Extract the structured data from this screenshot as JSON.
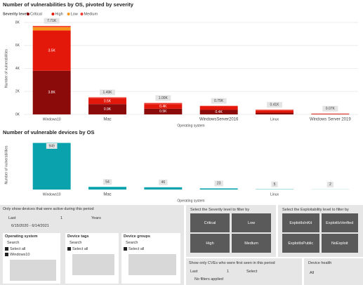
{
  "chart_data": [
    {
      "type": "stacked_bar",
      "title": "Number of vulnerabilities by OS, pivoted by severity",
      "legend_title": "Severity level",
      "y_label": "Number of vulnerabilities",
      "x_label": "Operating system",
      "categories": [
        "Windows10",
        "Mac",
        null,
        "WindowsServer2016",
        "Linux",
        "Windows Server 2019"
      ],
      "series": [
        {
          "name": "Critical",
          "color": "#8b0a0a",
          "values": [
            3800,
            900,
            500,
            400,
            150,
            20
          ],
          "value_labels": [
            "3.8K",
            "0.9K",
            "0.5K",
            "0.4K",
            null,
            null
          ]
        },
        {
          "name": "High",
          "color": "#e3170a",
          "values": [
            3500,
            500,
            400,
            300,
            200,
            40
          ],
          "value_labels": [
            "3.5K",
            "0.5K",
            "0.4K",
            null,
            null,
            null
          ]
        },
        {
          "name": "Low",
          "color": "#f7941d",
          "values": [
            300,
            0,
            0,
            0,
            0,
            0
          ]
        },
        {
          "name": "Medium",
          "color": "#f03c32",
          "values": [
            100,
            90,
            100,
            50,
            60,
            10
          ]
        }
      ],
      "totals": [
        7710,
        1490,
        1000,
        750,
        410,
        70
      ],
      "total_labels": [
        "7.71K",
        "1.49K",
        "1.00K",
        "0.75K",
        "0.41K",
        "0.07K"
      ],
      "ylim": [
        0,
        8000
      ],
      "yticks": [
        {
          "value": 0,
          "label": "0K"
        },
        {
          "value": 2000,
          "label": "2K"
        },
        {
          "value": 4000,
          "label": "4K"
        },
        {
          "value": 6000,
          "label": "6K"
        },
        {
          "value": 8000,
          "label": "8K"
        }
      ]
    },
    {
      "type": "bar",
      "title": "Number of vulnerable devices by OS",
      "y_label": "Number of vulnerabilities",
      "x_label": "Operating system",
      "categories": [
        "Windows10",
        "Mac",
        null,
        null,
        "Linux",
        null
      ],
      "values": [
        949,
        54,
        46,
        23,
        5,
        2
      ],
      "color": "#0aa3ad",
      "ylim": [
        0,
        1000
      ]
    }
  ],
  "active_filter": {
    "title": "Only show devices that were active during this period",
    "mode": "Last",
    "count": 1,
    "unit": "Years",
    "date_range": "6/15/2020 - 6/14/2021"
  },
  "slicers": [
    {
      "title": "Operating system",
      "search": "Search",
      "select_all": "Select all",
      "items": [
        "Windows10"
      ]
    },
    {
      "title": "Device tags",
      "search": "Search",
      "select_all": "Select all",
      "items": []
    },
    {
      "title": "Device groups",
      "search": "Search",
      "select_all": "Select all",
      "items": []
    }
  ],
  "severity_filter": {
    "title": "Select the Severity level to filter by",
    "options": [
      "Critical",
      "Low",
      "High",
      "Medium"
    ]
  },
  "exploit_filter": {
    "title": "Select the Exploitability level to filter by",
    "options": [
      "ExploitIsInKit",
      "ExploitIsVerified",
      "ExploitIsPublic",
      "NoExploit"
    ]
  },
  "cve_filter": {
    "title": "Show only CVEs who were first seen in this period",
    "mode": "Last",
    "count": 1,
    "unit": "Select",
    "status": "No filters applied"
  },
  "device_health": {
    "title": "Device health",
    "value": "All"
  }
}
